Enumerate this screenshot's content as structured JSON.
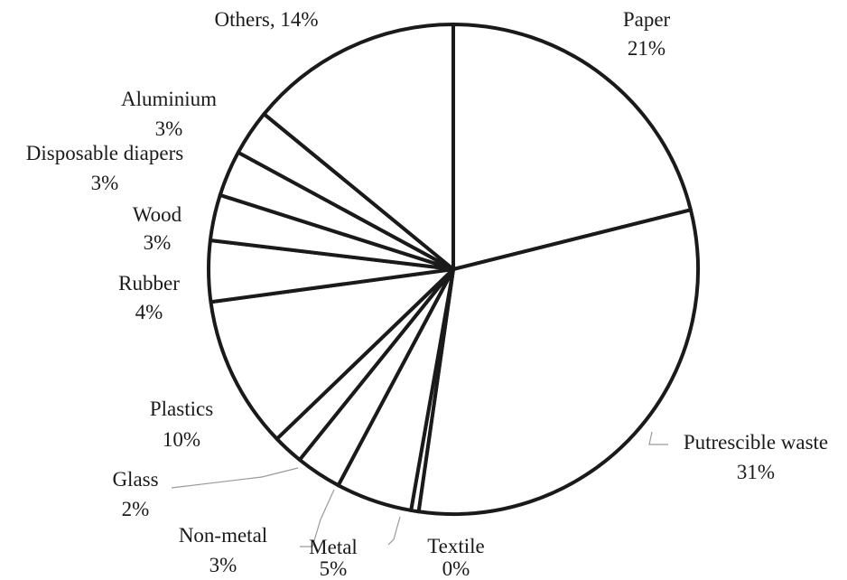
{
  "chart_data": {
    "type": "pie",
    "title": "",
    "start_angle_deg": 0,
    "direction": "clockwise",
    "slices": [
      {
        "label": "Paper",
        "value_label": "21%",
        "value": 21
      },
      {
        "label": "Putrescible waste",
        "value_label": "31%",
        "value": 31
      },
      {
        "label": "Textile",
        "value_label": "0%",
        "value": 0.5
      },
      {
        "label": "Metal",
        "value_label": "5%",
        "value": 5
      },
      {
        "label": "Non-metal",
        "value_label": "3%",
        "value": 3
      },
      {
        "label": "Glass",
        "value_label": "2%",
        "value": 2
      },
      {
        "label": "Plastics",
        "value_label": "10%",
        "value": 10
      },
      {
        "label": "Rubber",
        "value_label": "4%",
        "value": 4
      },
      {
        "label": "Wood",
        "value_label": "3%",
        "value": 3
      },
      {
        "label": "Disposable diapers",
        "value_label": "3%",
        "value": 3
      },
      {
        "label": "Aluminium",
        "value_label": "3%",
        "value": 3
      },
      {
        "label": "Others",
        "value_label": "14%",
        "value": 14
      }
    ],
    "others_label": "Others, 14%",
    "legend": "none",
    "colors": {
      "slice_fill": "#ffffff",
      "stroke": "#1a1a1a",
      "leader": "#9a9a9a"
    }
  }
}
